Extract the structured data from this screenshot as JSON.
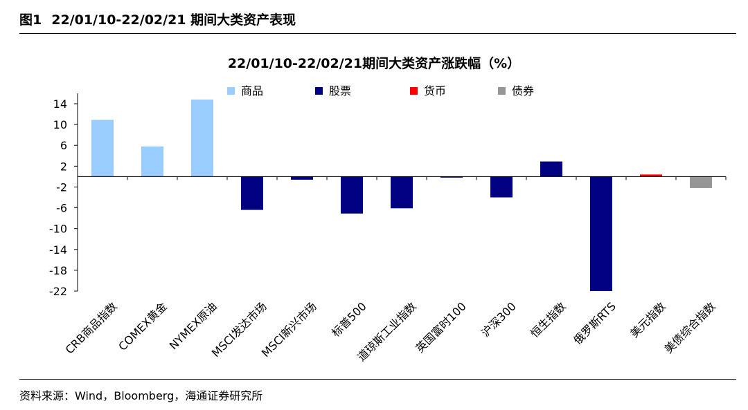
{
  "figure": {
    "label": "图1",
    "heading": "22/01/10-22/02/21 期间大类资产表现",
    "source": "资料来源：Wind，Bloomberg，海通证券研究所"
  },
  "chart_data": {
    "type": "bar",
    "title": "22/01/10-22/02/21期间大类资产涨跌幅（%）",
    "xlabel": "",
    "ylabel": "",
    "ylim": [
      -22,
      16
    ],
    "yticks": [
      14,
      10,
      6,
      2,
      -2,
      -6,
      -10,
      -14,
      -18,
      -22
    ],
    "grid": false,
    "legend_position": "top",
    "legend": [
      {
        "name": "商品",
        "color": "#99ccff"
      },
      {
        "name": "股票",
        "color": "#000080"
      },
      {
        "name": "货币",
        "color": "#ff0000"
      },
      {
        "name": "债券",
        "color": "#969696"
      }
    ],
    "categories": [
      "CRB商品指数",
      "COMEX黄金",
      "NYMEX原油",
      "MSCI发达市场",
      "MSCI新兴市场",
      "标普500",
      "道琼斯工业指数",
      "英国富时100",
      "沪深300",
      "恒生指数",
      "俄罗斯RTS",
      "美元指数",
      "美债综合指数"
    ],
    "values": [
      10.9,
      5.8,
      14.8,
      -6.4,
      -0.6,
      -7.1,
      -6.1,
      -0.2,
      -4.0,
      2.9,
      -22.0,
      0.4,
      -2.2
    ],
    "groups": [
      "商品",
      "商品",
      "商品",
      "股票",
      "股票",
      "股票",
      "股票",
      "股票",
      "股票",
      "股票",
      "股票",
      "货币",
      "债券"
    ]
  }
}
